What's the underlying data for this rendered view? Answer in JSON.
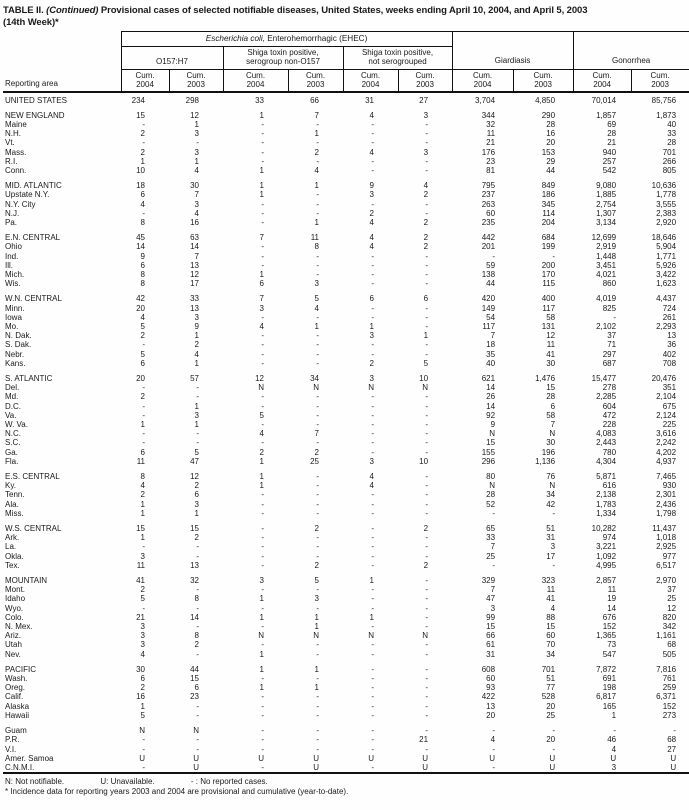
{
  "title": {
    "prefix": "TABLE II. ",
    "continued": "(Continued)",
    "rest": " Provisional cases of selected notifiable diseases, United States, weeks ending April 10, 2004, and April 5, 2003",
    "line2": "(14th Week)*"
  },
  "header": {
    "reporting_area": "Reporting area",
    "ehec_italic": "Escherichia coli,",
    "ehec_rest": " Enterohemorrhagic (EHEC)",
    "subgroup_o157": "O157:H7",
    "subgroup_non_o157_l1": "Shiga toxin positive,",
    "subgroup_non_o157_l2": "serogroup non-O157",
    "subgroup_not_sero_l1": "Shiga toxin positive,",
    "subgroup_not_sero_l2": "not serogrouped",
    "giardiasis": "Giardiasis",
    "gonorrhea": "Gonorrhea",
    "cum_label": "Cum.",
    "years": [
      "2004",
      "2003",
      "2004",
      "2003",
      "2004",
      "2003",
      "2004",
      "2003",
      "2004",
      "2003"
    ]
  },
  "rows": [
    {
      "area": "UNITED STATES",
      "type": "region",
      "gap": false,
      "values": [
        "234",
        "298",
        "33",
        "66",
        "31",
        "27",
        "3,704",
        "4,850",
        "70,014",
        "85,756"
      ]
    },
    {
      "area": "NEW ENGLAND",
      "type": "region",
      "gap": true,
      "values": [
        "15",
        "12",
        "1",
        "7",
        "4",
        "3",
        "344",
        "290",
        "1,857",
        "1,873"
      ]
    },
    {
      "area": "Maine",
      "type": "state",
      "gap": false,
      "values": [
        "-",
        "1",
        "-",
        "-",
        "-",
        "-",
        "32",
        "28",
        "69",
        "40"
      ]
    },
    {
      "area": "N.H.",
      "type": "state",
      "gap": false,
      "values": [
        "2",
        "3",
        "-",
        "1",
        "-",
        "-",
        "11",
        "16",
        "28",
        "33"
      ]
    },
    {
      "area": "Vt.",
      "type": "state",
      "gap": false,
      "values": [
        "-",
        "-",
        "-",
        "-",
        "-",
        "-",
        "21",
        "20",
        "21",
        "28"
      ]
    },
    {
      "area": "Mass.",
      "type": "state",
      "gap": false,
      "values": [
        "2",
        "3",
        "-",
        "2",
        "4",
        "3",
        "176",
        "153",
        "940",
        "701"
      ]
    },
    {
      "area": "R.I.",
      "type": "state",
      "gap": false,
      "values": [
        "1",
        "1",
        "-",
        "-",
        "-",
        "-",
        "23",
        "29",
        "257",
        "266"
      ]
    },
    {
      "area": "Conn.",
      "type": "state",
      "gap": false,
      "values": [
        "10",
        "4",
        "1",
        "4",
        "-",
        "-",
        "81",
        "44",
        "542",
        "805"
      ]
    },
    {
      "area": "MID. ATLANTIC",
      "type": "region",
      "gap": true,
      "values": [
        "18",
        "30",
        "1",
        "1",
        "9",
        "4",
        "795",
        "849",
        "9,080",
        "10,636"
      ]
    },
    {
      "area": "Upstate N.Y.",
      "type": "state",
      "gap": false,
      "values": [
        "6",
        "7",
        "1",
        "-",
        "3",
        "2",
        "237",
        "186",
        "1,885",
        "1,778"
      ]
    },
    {
      "area": "N.Y. City",
      "type": "state",
      "gap": false,
      "values": [
        "4",
        "3",
        "-",
        "-",
        "-",
        "-",
        "263",
        "345",
        "2,754",
        "3,555"
      ]
    },
    {
      "area": "N.J.",
      "type": "state",
      "gap": false,
      "values": [
        "-",
        "4",
        "-",
        "-",
        "2",
        "-",
        "60",
        "114",
        "1,307",
        "2,383"
      ]
    },
    {
      "area": "Pa.",
      "type": "state",
      "gap": false,
      "values": [
        "8",
        "16",
        "-",
        "1",
        "4",
        "2",
        "235",
        "204",
        "3,134",
        "2,920"
      ]
    },
    {
      "area": "E.N. CENTRAL",
      "type": "region",
      "gap": true,
      "values": [
        "45",
        "63",
        "7",
        "11",
        "4",
        "2",
        "442",
        "684",
        "12,699",
        "18,646"
      ]
    },
    {
      "area": "Ohio",
      "type": "state",
      "gap": false,
      "values": [
        "14",
        "14",
        "-",
        "8",
        "4",
        "2",
        "201",
        "199",
        "2,919",
        "5,904"
      ]
    },
    {
      "area": "Ind.",
      "type": "state",
      "gap": false,
      "values": [
        "9",
        "7",
        "-",
        "-",
        "-",
        "-",
        "-",
        "-",
        "1,448",
        "1,771"
      ]
    },
    {
      "area": "Ill.",
      "type": "state",
      "gap": false,
      "values": [
        "6",
        "13",
        "-",
        "-",
        "-",
        "-",
        "59",
        "200",
        "3,451",
        "5,926"
      ]
    },
    {
      "area": "Mich.",
      "type": "state",
      "gap": false,
      "values": [
        "8",
        "12",
        "1",
        "-",
        "-",
        "-",
        "138",
        "170",
        "4,021",
        "3,422"
      ]
    },
    {
      "area": "Wis.",
      "type": "state",
      "gap": false,
      "values": [
        "8",
        "17",
        "6",
        "3",
        "-",
        "-",
        "44",
        "115",
        "860",
        "1,623"
      ]
    },
    {
      "area": "W.N. CENTRAL",
      "type": "region",
      "gap": true,
      "values": [
        "42",
        "33",
        "7",
        "5",
        "6",
        "6",
        "420",
        "400",
        "4,019",
        "4,437"
      ]
    },
    {
      "area": "Minn.",
      "type": "state",
      "gap": false,
      "values": [
        "20",
        "13",
        "3",
        "4",
        "-",
        "-",
        "149",
        "117",
        "825",
        "724"
      ]
    },
    {
      "area": "Iowa",
      "type": "state",
      "gap": false,
      "values": [
        "4",
        "3",
        "-",
        "-",
        "-",
        "-",
        "54",
        "58",
        "-",
        "261"
      ]
    },
    {
      "area": "Mo.",
      "type": "state",
      "gap": false,
      "values": [
        "5",
        "9",
        "4",
        "1",
        "1",
        "-",
        "117",
        "131",
        "2,102",
        "2,293"
      ]
    },
    {
      "area": "N. Dak.",
      "type": "state",
      "gap": false,
      "values": [
        "2",
        "1",
        "-",
        "-",
        "3",
        "1",
        "7",
        "12",
        "37",
        "13"
      ]
    },
    {
      "area": "S. Dak.",
      "type": "state",
      "gap": false,
      "values": [
        "-",
        "2",
        "-",
        "-",
        "-",
        "-",
        "18",
        "11",
        "71",
        "36"
      ]
    },
    {
      "area": "Nebr.",
      "type": "state",
      "gap": false,
      "values": [
        "5",
        "4",
        "-",
        "-",
        "-",
        "-",
        "35",
        "41",
        "297",
        "402"
      ]
    },
    {
      "area": "Kans.",
      "type": "state",
      "gap": false,
      "values": [
        "6",
        "1",
        "-",
        "-",
        "2",
        "5",
        "40",
        "30",
        "687",
        "708"
      ]
    },
    {
      "area": "S. ATLANTIC",
      "type": "region",
      "gap": true,
      "values": [
        "20",
        "57",
        "12",
        "34",
        "3",
        "10",
        "621",
        "1,476",
        "15,477",
        "20,476"
      ]
    },
    {
      "area": "Del.",
      "type": "state",
      "gap": false,
      "values": [
        "-",
        "-",
        "N",
        "N",
        "N",
        "N",
        "14",
        "15",
        "278",
        "351"
      ]
    },
    {
      "area": "Md.",
      "type": "state",
      "gap": false,
      "values": [
        "2",
        "-",
        "-",
        "-",
        "-",
        "-",
        "26",
        "28",
        "2,285",
        "2,104"
      ]
    },
    {
      "area": "D.C.",
      "type": "state",
      "gap": false,
      "values": [
        "-",
        "1",
        "-",
        "-",
        "-",
        "-",
        "14",
        "6",
        "604",
        "675"
      ]
    },
    {
      "area": "Va.",
      "type": "state",
      "gap": false,
      "values": [
        "-",
        "3",
        "5",
        "-",
        "-",
        "-",
        "92",
        "58",
        "472",
        "2,124"
      ]
    },
    {
      "area": "W. Va.",
      "type": "state",
      "gap": false,
      "values": [
        "1",
        "1",
        "-",
        "-",
        "-",
        "-",
        "9",
        "7",
        "228",
        "225"
      ]
    },
    {
      "area": "N.C.",
      "type": "state",
      "gap": false,
      "values": [
        "-",
        "-",
        "4",
        "7",
        "-",
        "-",
        "N",
        "N",
        "4,083",
        "3,616"
      ]
    },
    {
      "area": "S.C.",
      "type": "state",
      "gap": false,
      "values": [
        "-",
        "-",
        "-",
        "-",
        "-",
        "-",
        "15",
        "30",
        "2,443",
        "2,242"
      ]
    },
    {
      "area": "Ga.",
      "type": "state",
      "gap": false,
      "values": [
        "6",
        "5",
        "2",
        "2",
        "-",
        "-",
        "155",
        "196",
        "780",
        "4,202"
      ]
    },
    {
      "area": "Fla.",
      "type": "state",
      "gap": false,
      "values": [
        "11",
        "47",
        "1",
        "25",
        "3",
        "10",
        "296",
        "1,136",
        "4,304",
        "4,937"
      ]
    },
    {
      "area": "E.S. CENTRAL",
      "type": "region",
      "gap": true,
      "values": [
        "8",
        "12",
        "1",
        "-",
        "4",
        "-",
        "80",
        "76",
        "5,871",
        "7,465"
      ]
    },
    {
      "area": "Ky.",
      "type": "state",
      "gap": false,
      "values": [
        "4",
        "2",
        "1",
        "-",
        "4",
        "-",
        "N",
        "N",
        "616",
        "930"
      ]
    },
    {
      "area": "Tenn.",
      "type": "state",
      "gap": false,
      "values": [
        "2",
        "6",
        "-",
        "-",
        "-",
        "-",
        "28",
        "34",
        "2,138",
        "2,301"
      ]
    },
    {
      "area": "Ala.",
      "type": "state",
      "gap": false,
      "values": [
        "1",
        "3",
        "-",
        "-",
        "-",
        "-",
        "52",
        "42",
        "1,783",
        "2,436"
      ]
    },
    {
      "area": "Miss.",
      "type": "state",
      "gap": false,
      "values": [
        "1",
        "1",
        "-",
        "-",
        "-",
        "-",
        "-",
        "-",
        "1,334",
        "1,798"
      ]
    },
    {
      "area": "W.S. CENTRAL",
      "type": "region",
      "gap": true,
      "values": [
        "15",
        "15",
        "-",
        "2",
        "-",
        "2",
        "65",
        "51",
        "10,282",
        "11,437"
      ]
    },
    {
      "area": "Ark.",
      "type": "state",
      "gap": false,
      "values": [
        "1",
        "2",
        "-",
        "-",
        "-",
        "-",
        "33",
        "31",
        "974",
        "1,018"
      ]
    },
    {
      "area": "La.",
      "type": "state",
      "gap": false,
      "values": [
        "-",
        "-",
        "-",
        "-",
        "-",
        "-",
        "7",
        "3",
        "3,221",
        "2,925"
      ]
    },
    {
      "area": "Okla.",
      "type": "state",
      "gap": false,
      "values": [
        "3",
        "-",
        "-",
        "-",
        "-",
        "-",
        "25",
        "17",
        "1,092",
        "977"
      ]
    },
    {
      "area": "Tex.",
      "type": "state",
      "gap": false,
      "values": [
        "11",
        "13",
        "-",
        "2",
        "-",
        "2",
        "-",
        "-",
        "4,995",
        "6,517"
      ]
    },
    {
      "area": "MOUNTAIN",
      "type": "region",
      "gap": true,
      "values": [
        "41",
        "32",
        "3",
        "5",
        "1",
        "-",
        "329",
        "323",
        "2,857",
        "2,970"
      ]
    },
    {
      "area": "Mont.",
      "type": "state",
      "gap": false,
      "values": [
        "2",
        "-",
        "-",
        "-",
        "-",
        "-",
        "7",
        "11",
        "11",
        "37"
      ]
    },
    {
      "area": "Idaho",
      "type": "state",
      "gap": false,
      "values": [
        "5",
        "8",
        "1",
        "3",
        "-",
        "-",
        "47",
        "41",
        "19",
        "25"
      ]
    },
    {
      "area": "Wyo.",
      "type": "state",
      "gap": false,
      "values": [
        "-",
        "-",
        "-",
        "-",
        "-",
        "-",
        "3",
        "4",
        "14",
        "12"
      ]
    },
    {
      "area": "Colo.",
      "type": "state",
      "gap": false,
      "values": [
        "21",
        "14",
        "1",
        "1",
        "1",
        "-",
        "99",
        "88",
        "676",
        "820"
      ]
    },
    {
      "area": "N. Mex.",
      "type": "state",
      "gap": false,
      "values": [
        "3",
        "-",
        "-",
        "1",
        "-",
        "-",
        "15",
        "15",
        "152",
        "342"
      ]
    },
    {
      "area": "Ariz.",
      "type": "state",
      "gap": false,
      "values": [
        "3",
        "8",
        "N",
        "N",
        "N",
        "N",
        "66",
        "60",
        "1,365",
        "1,161"
      ]
    },
    {
      "area": "Utah",
      "type": "state",
      "gap": false,
      "values": [
        "3",
        "2",
        "-",
        "-",
        "-",
        "-",
        "61",
        "70",
        "73",
        "68"
      ]
    },
    {
      "area": "Nev.",
      "type": "state",
      "gap": false,
      "values": [
        "4",
        "-",
        "1",
        "-",
        "-",
        "-",
        "31",
        "34",
        "547",
        "505"
      ]
    },
    {
      "area": "PACIFIC",
      "type": "region",
      "gap": true,
      "values": [
        "30",
        "44",
        "1",
        "1",
        "-",
        "-",
        "608",
        "701",
        "7,872",
        "7,816"
      ]
    },
    {
      "area": "Wash.",
      "type": "state",
      "gap": false,
      "values": [
        "6",
        "15",
        "-",
        "-",
        "-",
        "-",
        "60",
        "51",
        "691",
        "761"
      ]
    },
    {
      "area": "Oreg.",
      "type": "state",
      "gap": false,
      "values": [
        "2",
        "6",
        "1",
        "1",
        "-",
        "-",
        "93",
        "77",
        "198",
        "259"
      ]
    },
    {
      "area": "Calif.",
      "type": "state",
      "gap": false,
      "values": [
        "16",
        "23",
        "-",
        "-",
        "-",
        "-",
        "422",
        "528",
        "6,817",
        "6,371"
      ]
    },
    {
      "area": "Alaska",
      "type": "state",
      "gap": false,
      "values": [
        "1",
        "-",
        "-",
        "-",
        "-",
        "-",
        "13",
        "20",
        "165",
        "152"
      ]
    },
    {
      "area": "Hawaii",
      "type": "state",
      "gap": false,
      "values": [
        "5",
        "-",
        "-",
        "-",
        "-",
        "-",
        "20",
        "25",
        "1",
        "273"
      ]
    },
    {
      "area": "Guam",
      "type": "territory",
      "gap": true,
      "values": [
        "N",
        "N",
        "-",
        "-",
        "-",
        "-",
        "-",
        "-",
        "-",
        "-"
      ]
    },
    {
      "area": "P.R.",
      "type": "territory",
      "gap": false,
      "values": [
        "-",
        "-",
        "-",
        "-",
        "-",
        "21",
        "4",
        "20",
        "46",
        "68"
      ]
    },
    {
      "area": "V.I.",
      "type": "territory",
      "gap": false,
      "values": [
        "-",
        "-",
        "-",
        "-",
        "-",
        "-",
        "-",
        "-",
        "4",
        "27"
      ]
    },
    {
      "area": "Amer. Samoa",
      "type": "territory",
      "gap": false,
      "values": [
        "U",
        "U",
        "U",
        "U",
        "U",
        "U",
        "U",
        "U",
        "U",
        "U"
      ]
    },
    {
      "area": "C.N.M.I.",
      "type": "territory",
      "gap": false,
      "values": [
        "-",
        "U",
        "-",
        "U",
        "-",
        "U",
        "-",
        "U",
        "3",
        "U"
      ]
    }
  ],
  "footnotes": {
    "not_notifiable": "N: Not notifiable.",
    "unavailable": "U: Unavailable.",
    "no_cases": "- : No reported cases.",
    "incidence_note": "* Incidence data for reporting years 2003 and 2004 are provisional and cumulative (year-to-date)."
  }
}
